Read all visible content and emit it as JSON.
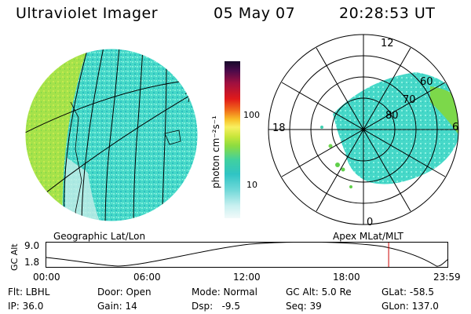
{
  "header": {
    "title": "Ultraviolet Imager",
    "date": "05 May 07",
    "time": "20:28:53 UT"
  },
  "colorbar": {
    "unit_label": "photon cm⁻²s⁻¹",
    "ticks": [
      "100",
      "10"
    ]
  },
  "polar": {
    "mlt_labels": {
      "top": "12",
      "left": "18",
      "right": "6",
      "bottom": "0"
    },
    "lat_labels": [
      "60",
      "70",
      "80"
    ]
  },
  "panel_labels": {
    "left": "Geographic Lat/Lon",
    "right": "Apex MLat/MLT"
  },
  "altitude_plot": {
    "axis_label": "GC Alt",
    "y_ticks": [
      "9.0",
      "1.8"
    ],
    "x_ticks": [
      "00:00",
      "06:00",
      "12:00",
      "18:00",
      "23:59"
    ],
    "current_time_fraction": 0.8534
  },
  "info": {
    "row1": [
      "Flt: LBHL",
      "Door: Open",
      "Mode: Normal",
      "GC Alt: 5.0 Re",
      "GLat: -58.5"
    ],
    "row2": [
      "IP: 36.0",
      "Gain: 14",
      "Dsp:   -9.5",
      "Seq: 39",
      "GLon: 137.0"
    ]
  },
  "colors": {
    "image_teal": "#40dcc8",
    "image_green": "#9ae04c",
    "marker": "#cc0000"
  }
}
